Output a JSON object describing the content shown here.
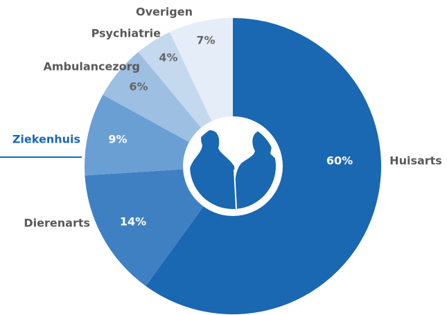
{
  "chart_data": {
    "type": "donut",
    "categories": [
      "Huisarts",
      "Dierenarts",
      "Ziekenhuis",
      "Ambulancezorg",
      "Psychiatrie",
      "Overigen"
    ],
    "values": [
      60,
      14,
      9,
      6,
      4,
      7
    ],
    "value_labels": [
      "60%",
      "14%",
      "9%",
      "6%",
      "4%",
      "7%"
    ],
    "colors": [
      "#1a67b2",
      "#3f80c3",
      "#6a9fd4",
      "#9cbfe2",
      "#c4d8ee",
      "#e4edf8"
    ],
    "highlight_index": 2
  }
}
